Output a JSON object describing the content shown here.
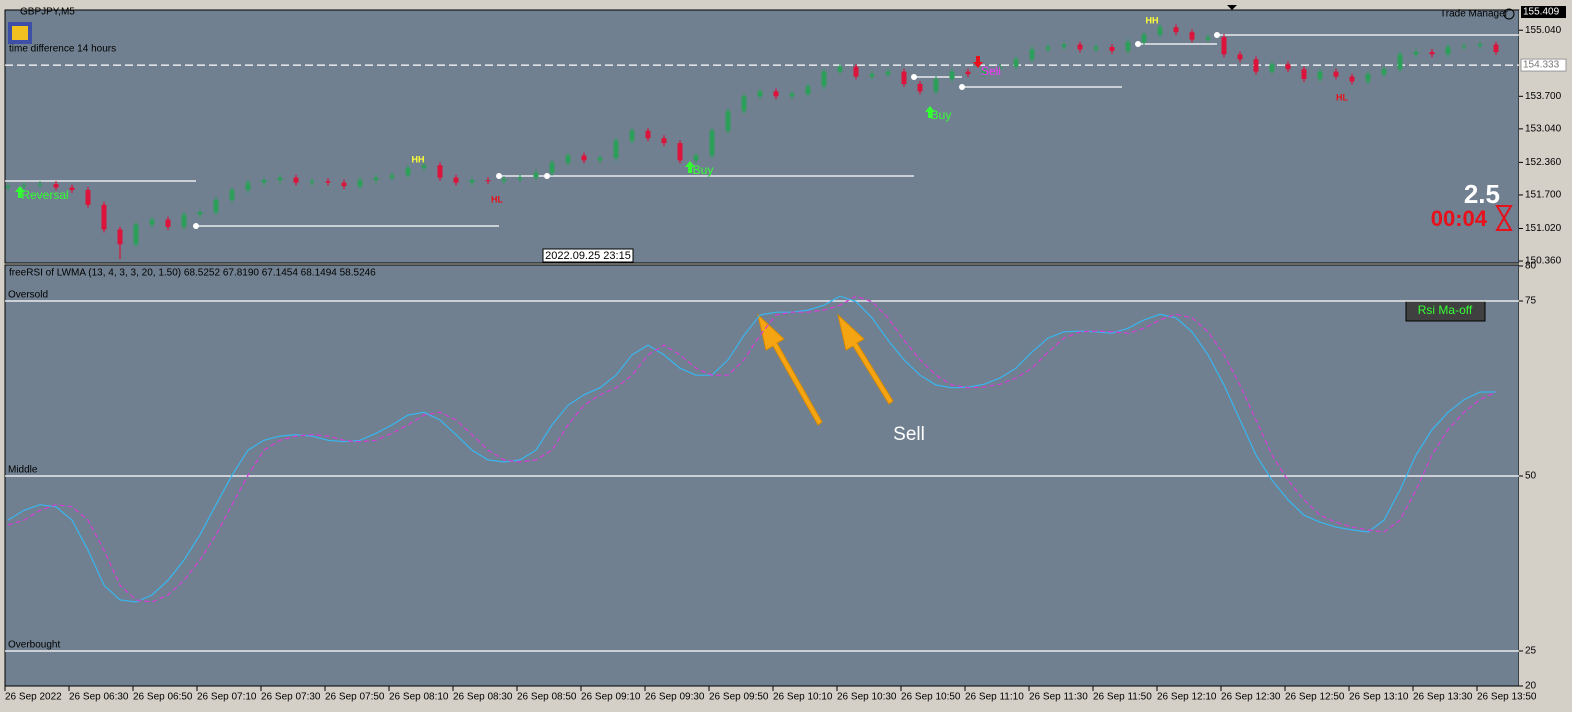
{
  "chart_data": [
    {
      "type": "candlestick",
      "title": "GBPJPY,M5",
      "subtitle": "time difference 14 hours",
      "categories": [
        "26 Sep 2022",
        null,
        null,
        null,
        "26 Sep 06:30",
        null,
        null,
        null,
        "26 Sep 06:50",
        null,
        null,
        null,
        "26 Sep 07:10",
        null,
        null,
        null,
        "26 Sep 07:30",
        null,
        null,
        null,
        "26 Sep 07:50",
        null,
        null,
        null,
        "26 Sep 08:10",
        null,
        null,
        null,
        "26 Sep 08:30",
        null,
        null,
        null,
        "26 Sep 08:50",
        null,
        null,
        null,
        "26 Sep 09:10",
        null,
        null,
        null,
        "26 Sep 09:30",
        null,
        null,
        null,
        "26 Sep 09:50",
        null,
        null,
        null,
        "26 Sep 10:10",
        null,
        null,
        null,
        "26 Sep 10:30",
        null,
        null,
        null,
        "26 Sep 10:50",
        null,
        null,
        null,
        "26 Sep 11:10",
        null,
        null,
        null,
        "26 Sep 11:30",
        null,
        null,
        null,
        "26 Sep 11:50",
        null,
        null,
        null,
        "26 Sep 12:10",
        null,
        null,
        null,
        "26 Sep 12:30",
        null,
        null,
        null,
        "26 Sep 12:50",
        null,
        null,
        null,
        "26 Sep 13:10",
        null,
        null,
        null,
        "26 Sep 13:30",
        null,
        null,
        null,
        "26 Sep 13:50",
        null
      ],
      "open": [
        151.85,
        151.88,
        151.9,
        151.92,
        151.85,
        151.8,
        151.5,
        151.0,
        150.7,
        151.1,
        151.2,
        151.05,
        151.3,
        151.35,
        151.6,
        151.8,
        151.95,
        152.0,
        152.05,
        151.95,
        151.98,
        151.95,
        151.88,
        152.0,
        152.05,
        152.1,
        152.25,
        152.3,
        152.05,
        151.95,
        152.0,
        151.98,
        152.02,
        152.05,
        152.15,
        152.35,
        152.5,
        152.4,
        152.45,
        152.8,
        153.0,
        152.85,
        152.75,
        152.4,
        152.5,
        153.0,
        153.4,
        153.7,
        153.8,
        153.7,
        153.75,
        153.9,
        154.2,
        154.3,
        154.1,
        154.15,
        154.2,
        153.95,
        153.8,
        154.05,
        154.2,
        154.15,
        154.25,
        154.3,
        154.45,
        154.65,
        154.7,
        154.75,
        154.65,
        154.7,
        154.62,
        154.8,
        154.95,
        155.1,
        155.0,
        154.85,
        154.9,
        154.55,
        154.45,
        154.2,
        154.35,
        154.25,
        154.05,
        154.2,
        154.1,
        154.0,
        154.15,
        154.25,
        154.55,
        154.6,
        154.55,
        154.7,
        154.72,
        154.75
      ],
      "high": [
        151.94,
        151.96,
        151.98,
        151.98,
        151.91,
        151.86,
        151.56,
        151.06,
        151.16,
        151.26,
        151.26,
        151.36,
        151.41,
        151.66,
        151.86,
        152.01,
        152.06,
        152.11,
        152.11,
        152.04,
        152.04,
        152.01,
        152.06,
        152.11,
        152.16,
        152.31,
        152.36,
        152.36,
        152.11,
        152.06,
        152.06,
        152.08,
        152.11,
        152.21,
        152.41,
        152.56,
        152.56,
        152.51,
        152.86,
        153.06,
        153.06,
        152.91,
        152.81,
        152.56,
        153.06,
        153.46,
        153.76,
        153.86,
        153.86,
        153.81,
        153.96,
        154.26,
        154.36,
        154.36,
        154.21,
        154.26,
        154.26,
        154.01,
        154.11,
        154.26,
        154.26,
        154.31,
        154.36,
        154.51,
        154.71,
        154.76,
        154.81,
        154.81,
        154.76,
        154.76,
        154.86,
        155.01,
        155.16,
        155.16,
        155.06,
        154.96,
        154.96,
        154.61,
        154.51,
        154.41,
        154.41,
        154.31,
        154.26,
        154.26,
        154.16,
        154.21,
        154.31,
        154.61,
        154.66,
        154.66,
        154.76,
        154.78,
        154.81,
        154.81
      ],
      "low": [
        151.79,
        151.82,
        151.84,
        151.79,
        151.74,
        151.44,
        150.94,
        150.4,
        150.64,
        151.04,
        150.99,
        150.99,
        151.24,
        151.29,
        151.54,
        151.74,
        151.89,
        151.94,
        151.89,
        151.89,
        151.89,
        151.82,
        151.82,
        151.94,
        151.99,
        152.04,
        152.19,
        151.99,
        151.89,
        151.89,
        151.92,
        151.92,
        151.96,
        151.99,
        152.09,
        152.29,
        152.34,
        152.34,
        152.39,
        152.74,
        152.79,
        152.69,
        152.34,
        152.34,
        152.44,
        152.94,
        153.34,
        153.64,
        153.64,
        153.64,
        153.69,
        153.84,
        154.14,
        154.04,
        154.04,
        154.09,
        153.89,
        153.74,
        153.74,
        153.99,
        154.09,
        154.09,
        154.19,
        154.24,
        154.39,
        154.59,
        154.64,
        154.59,
        154.59,
        154.56,
        154.56,
        154.74,
        154.89,
        154.94,
        154.79,
        154.79,
        154.49,
        154.39,
        154.14,
        154.14,
        154.19,
        153.99,
        153.99,
        154.04,
        153.94,
        153.94,
        154.09,
        154.19,
        154.49,
        154.49,
        154.49,
        154.64,
        154.66,
        154.54
      ],
      "close": [
        151.88,
        151.9,
        151.92,
        151.85,
        151.8,
        151.5,
        151.0,
        150.7,
        151.1,
        151.2,
        151.05,
        151.3,
        151.35,
        151.6,
        151.8,
        151.95,
        152.0,
        152.05,
        151.95,
        151.98,
        151.95,
        151.88,
        152.0,
        152.05,
        152.1,
        152.25,
        152.3,
        152.05,
        151.95,
        152.0,
        151.98,
        152.02,
        152.05,
        152.15,
        152.35,
        152.5,
        152.4,
        152.45,
        152.8,
        153.0,
        152.85,
        152.75,
        152.4,
        152.5,
        153.0,
        153.4,
        153.7,
        153.8,
        153.7,
        153.75,
        153.9,
        154.2,
        154.3,
        154.1,
        154.15,
        154.2,
        153.95,
        153.8,
        154.05,
        154.2,
        154.15,
        154.25,
        154.3,
        154.45,
        154.65,
        154.7,
        154.75,
        154.65,
        154.7,
        154.62,
        154.8,
        154.95,
        155.1,
        155.0,
        154.85,
        154.9,
        154.55,
        154.45,
        154.2,
        154.35,
        154.25,
        154.05,
        154.2,
        154.1,
        154.0,
        154.15,
        154.25,
        154.55,
        154.6,
        154.55,
        154.7,
        154.72,
        154.75,
        154.6
      ],
      "up_color": "#2e9e5b",
      "down_color": "#dc143c",
      "ylim": [
        150.32,
        155.45
      ],
      "yticks": [
        {
          "value": 155.04,
          "label": "155.040"
        },
        {
          "value": 153.7,
          "label": "153.700"
        },
        {
          "value": 153.04,
          "label": "153.040"
        },
        {
          "value": 152.36,
          "label": "152.360"
        },
        {
          "value": 151.7,
          "label": "151.700"
        },
        {
          "value": 151.02,
          "label": "151.020"
        },
        {
          "value": 150.36,
          "label": "150.360"
        }
      ],
      "high_marker": 155.409,
      "current_price": 154.333,
      "annotations": {
        "hh_1": "HH",
        "hh_2": "HH",
        "hl_1": "HL",
        "hl_2": "HL",
        "buy_1": "Buy",
        "buy_2": "Buy",
        "reversal": "Reversal",
        "sell_signal": "Sell",
        "cursor_time": "2022.09.25 23:15",
        "trade_manager": "Trade Manager",
        "spread": "2.5",
        "timer": "00:04"
      }
    },
    {
      "type": "line",
      "title": "freeRSI of LWMA (13, 4, 3, 3, 20, 1.50) 68.5252 67.8190 67.1454 68.1494 58.5246",
      "series": [
        {
          "color": "#38b6f0",
          "values": [
            43.7,
            45.1,
            45.9,
            45.6,
            43.7,
            39.4,
            34.4,
            32.3,
            32.0,
            33.0,
            35.1,
            38.0,
            41.6,
            45.9,
            50.1,
            53.7,
            55.1,
            55.7,
            55.9,
            55.7,
            55.1,
            54.9,
            55.1,
            56.1,
            57.3,
            58.7,
            59.1,
            58.0,
            55.9,
            53.7,
            52.3,
            52.0,
            52.3,
            53.7,
            57.3,
            60.1,
            61.6,
            62.6,
            64.4,
            67.3,
            68.7,
            67.3,
            65.4,
            64.4,
            64.4,
            66.6,
            70.1,
            73.0,
            73.4,
            73.4,
            73.7,
            74.4,
            75.7,
            74.9,
            72.6,
            69.4,
            66.6,
            64.4,
            63.0,
            62.6,
            62.7,
            63.1,
            64.0,
            65.4,
            67.7,
            69.7,
            70.6,
            70.7,
            70.6,
            70.4,
            71.1,
            72.3,
            73.1,
            72.6,
            70.6,
            67.3,
            63.0,
            58.0,
            53.0,
            49.4,
            46.6,
            44.4,
            43.4,
            42.7,
            42.3,
            42.0,
            43.7,
            48.0,
            53.0,
            56.6,
            59.1,
            60.9,
            62.0,
            62.0
          ]
        },
        {
          "color": "#d63ad6",
          "dashed": true,
          "values": [
            43.0,
            43.7,
            45.1,
            45.9,
            45.6,
            43.7,
            39.4,
            34.4,
            32.3,
            32.0,
            33.0,
            35.1,
            38.0,
            41.6,
            45.9,
            50.1,
            53.7,
            55.1,
            55.7,
            55.9,
            55.7,
            55.1,
            54.9,
            55.1,
            56.1,
            57.3,
            58.7,
            59.1,
            58.0,
            55.9,
            53.7,
            52.3,
            52.0,
            52.3,
            53.7,
            57.3,
            60.1,
            61.6,
            62.6,
            64.4,
            67.3,
            68.7,
            67.3,
            65.4,
            64.4,
            64.4,
            66.6,
            70.1,
            73.0,
            73.4,
            73.4,
            73.7,
            74.4,
            75.7,
            74.9,
            72.6,
            69.4,
            66.6,
            64.4,
            63.0,
            62.6,
            62.7,
            63.1,
            64.0,
            65.4,
            67.7,
            69.7,
            70.6,
            70.7,
            70.6,
            70.4,
            71.1,
            72.3,
            73.1,
            72.6,
            70.6,
            67.3,
            63.0,
            58.0,
            53.0,
            49.4,
            46.6,
            44.4,
            43.4,
            42.7,
            42.3,
            42.0,
            43.7,
            48.0,
            53.0,
            56.6,
            59.1,
            60.9,
            62.0
          ]
        }
      ],
      "levels": [
        {
          "value": 75,
          "label": "Oversold"
        },
        {
          "value": 50,
          "label": "Middle"
        },
        {
          "value": 25,
          "label": "Overbought"
        }
      ],
      "ylim": [
        20,
        80
      ],
      "yticks": [
        80,
        75,
        50,
        25,
        20
      ],
      "button": "Rsi Ma-off",
      "annotation": "Sell"
    }
  ]
}
